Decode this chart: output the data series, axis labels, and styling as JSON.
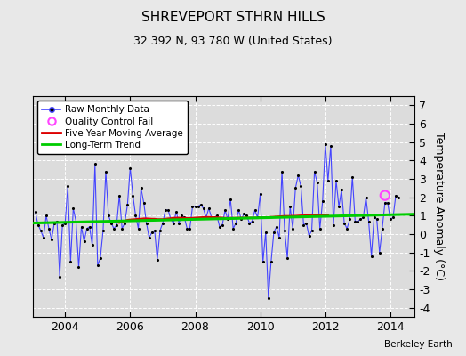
{
  "title": "SHREVEPORT STHRN HILLS",
  "subtitle": "32.392 N, 93.780 W (United States)",
  "ylabel": "Temperature Anomaly (°C)",
  "watermark": "Berkeley Earth",
  "ylim": [
    -4.5,
    7.5
  ],
  "xlim": [
    2003.0,
    2014.75
  ],
  "yticks": [
    -4,
    -3,
    -2,
    -1,
    0,
    1,
    2,
    3,
    4,
    5,
    6,
    7
  ],
  "xticks": [
    2004,
    2006,
    2008,
    2010,
    2012,
    2014
  ],
  "bg_color": "#e8e8e8",
  "plot_bg_color": "#dcdcdc",
  "raw_color": "#4444ff",
  "ma_color": "#dd0000",
  "trend_color": "#00cc00",
  "qc_color": "#ff44ff",
  "grid_color": "#ffffff",
  "raw_data_x": [
    2003.083,
    2003.167,
    2003.25,
    2003.333,
    2003.417,
    2003.5,
    2003.583,
    2003.667,
    2003.75,
    2003.833,
    2003.917,
    2004.0,
    2004.083,
    2004.167,
    2004.25,
    2004.333,
    2004.417,
    2004.5,
    2004.583,
    2004.667,
    2004.75,
    2004.833,
    2004.917,
    2005.0,
    2005.083,
    2005.167,
    2005.25,
    2005.333,
    2005.417,
    2005.5,
    2005.583,
    2005.667,
    2005.75,
    2005.833,
    2005.917,
    2006.0,
    2006.083,
    2006.167,
    2006.25,
    2006.333,
    2006.417,
    2006.5,
    2006.583,
    2006.667,
    2006.75,
    2006.833,
    2006.917,
    2007.0,
    2007.083,
    2007.167,
    2007.25,
    2007.333,
    2007.417,
    2007.5,
    2007.583,
    2007.667,
    2007.75,
    2007.833,
    2007.917,
    2008.0,
    2008.083,
    2008.167,
    2008.25,
    2008.333,
    2008.417,
    2008.5,
    2008.583,
    2008.667,
    2008.75,
    2008.833,
    2008.917,
    2009.0,
    2009.083,
    2009.167,
    2009.25,
    2009.333,
    2009.417,
    2009.5,
    2009.583,
    2009.667,
    2009.75,
    2009.833,
    2009.917,
    2010.0,
    2010.083,
    2010.167,
    2010.25,
    2010.333,
    2010.417,
    2010.5,
    2010.583,
    2010.667,
    2010.75,
    2010.833,
    2010.917,
    2011.0,
    2011.083,
    2011.167,
    2011.25,
    2011.333,
    2011.417,
    2011.5,
    2011.583,
    2011.667,
    2011.75,
    2011.833,
    2011.917,
    2012.0,
    2012.083,
    2012.167,
    2012.25,
    2012.333,
    2012.417,
    2012.5,
    2012.583,
    2012.667,
    2012.75,
    2012.833,
    2012.917,
    2013.0,
    2013.083,
    2013.167,
    2013.25,
    2013.333,
    2013.417,
    2013.5,
    2013.583,
    2013.667,
    2013.75,
    2013.833,
    2013.917,
    2014.0,
    2014.083,
    2014.167,
    2014.25
  ],
  "raw_data_y": [
    1.2,
    0.5,
    0.2,
    -0.2,
    1.0,
    0.3,
    -0.3,
    0.6,
    0.7,
    -2.3,
    0.5,
    0.6,
    2.6,
    -1.5,
    1.4,
    0.7,
    -1.8,
    0.4,
    -0.4,
    0.3,
    0.4,
    -0.6,
    3.8,
    -1.7,
    -1.3,
    0.2,
    3.4,
    1.0,
    0.6,
    0.3,
    0.5,
    2.1,
    0.3,
    0.6,
    1.6,
    3.6,
    2.1,
    1.0,
    0.3,
    2.5,
    1.7,
    0.6,
    -0.2,
    0.1,
    0.2,
    -1.4,
    0.2,
    0.6,
    1.3,
    1.3,
    0.8,
    0.6,
    1.2,
    0.6,
    1.0,
    0.9,
    0.3,
    0.3,
    1.5,
    1.5,
    1.5,
    1.6,
    1.4,
    0.9,
    1.4,
    0.9,
    0.9,
    1.0,
    0.4,
    0.5,
    1.3,
    0.8,
    1.9,
    0.3,
    0.6,
    1.3,
    0.8,
    1.1,
    1.0,
    0.6,
    0.7,
    1.3,
    0.9,
    2.2,
    -1.5,
    0.1,
    -3.5,
    -1.5,
    0.1,
    0.4,
    -0.2,
    3.4,
    0.2,
    -1.3,
    1.5,
    0.3,
    2.5,
    3.2,
    2.6,
    0.5,
    0.6,
    -0.1,
    0.2,
    3.4,
    2.8,
    0.3,
    1.8,
    4.9,
    2.9,
    4.8,
    0.5,
    2.9,
    1.5,
    2.4,
    0.6,
    0.3,
    0.8,
    3.1,
    0.7,
    0.7,
    0.8,
    0.9,
    2.0,
    0.7,
    -1.2,
    0.9,
    0.8,
    -1.0,
    0.3,
    1.7,
    1.7,
    0.8,
    0.9,
    2.1,
    2.0
  ],
  "ma_x": [
    2005.5,
    2005.583,
    2005.667,
    2005.75,
    2005.833,
    2005.917,
    2006.0,
    2006.083,
    2006.167,
    2006.25,
    2006.333,
    2006.417,
    2006.5,
    2006.583,
    2006.667,
    2006.75,
    2006.833,
    2006.917,
    2007.0,
    2007.083,
    2007.167,
    2007.25,
    2007.333,
    2007.417,
    2007.5,
    2007.583,
    2007.667,
    2007.75,
    2007.833,
    2007.917,
    2008.0,
    2008.083,
    2008.167,
    2008.25,
    2008.333,
    2008.417,
    2008.5,
    2008.583,
    2008.667,
    2008.75,
    2008.833,
    2008.917,
    2009.0,
    2009.083,
    2009.167,
    2009.25,
    2009.333,
    2009.417,
    2009.5,
    2009.583,
    2009.667,
    2009.75,
    2009.833,
    2009.917,
    2010.0,
    2010.083,
    2010.167,
    2010.25,
    2010.333,
    2010.417,
    2010.5,
    2010.583,
    2010.667,
    2010.75,
    2010.833,
    2010.917,
    2011.0,
    2011.083,
    2011.167,
    2011.25,
    2011.333,
    2011.417,
    2011.5,
    2011.583,
    2011.667,
    2011.75,
    2011.833,
    2011.917,
    2012.0,
    2012.083
  ],
  "ma_y": [
    0.68,
    0.65,
    0.62,
    0.68,
    0.72,
    0.76,
    0.78,
    0.79,
    0.8,
    0.82,
    0.82,
    0.84,
    0.84,
    0.83,
    0.82,
    0.82,
    0.8,
    0.8,
    0.8,
    0.82,
    0.84,
    0.85,
    0.87,
    0.88,
    0.88,
    0.87,
    0.87,
    0.86,
    0.86,
    0.87,
    0.88,
    0.89,
    0.9,
    0.91,
    0.92,
    0.92,
    0.91,
    0.9,
    0.9,
    0.89,
    0.88,
    0.87,
    0.87,
    0.87,
    0.87,
    0.87,
    0.88,
    0.88,
    0.88,
    0.88,
    0.88,
    0.88,
    0.88,
    0.88,
    0.89,
    0.9,
    0.91,
    0.91,
    0.92,
    0.93,
    0.94,
    0.95,
    0.96,
    0.97,
    0.97,
    0.97,
    0.98,
    0.98,
    0.99,
    1.0,
    1.0,
    1.01,
    1.01,
    1.01,
    1.01,
    1.01,
    1.01,
    1.01,
    1.01,
    1.01
  ],
  "trend_x": [
    2003.0,
    2014.75
  ],
  "trend_y": [
    0.6,
    1.08
  ],
  "qc_x": [
    2013.833
  ],
  "qc_y": [
    2.1
  ]
}
